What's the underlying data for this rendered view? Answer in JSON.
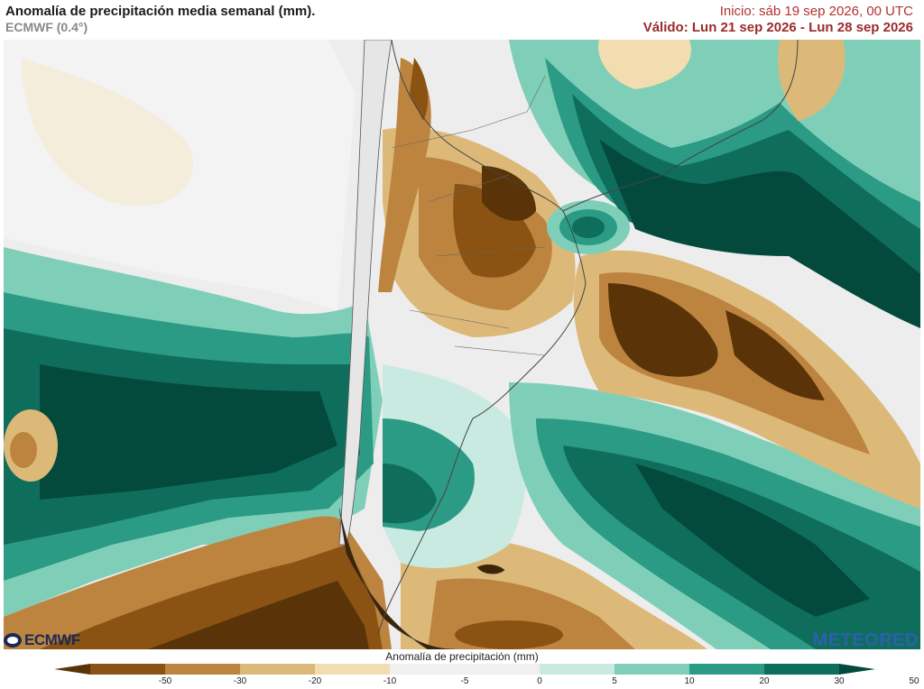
{
  "header": {
    "title": "Anomalía de precipitación media semanal (mm).",
    "model": "ECMWF (0.4°)",
    "init": "Inicio:  sáb 19 sep 2026, 00 UTC",
    "valid": "Válido: Lun 21 sep 2026 - Lun 28 sep 2026"
  },
  "legend": {
    "title": "Anomalía de precipitación (mm)",
    "ticks": [
      "-50",
      "-30",
      "-20",
      "-10",
      "-5",
      "0",
      "5",
      "10",
      "20",
      "30",
      "50"
    ],
    "colors": [
      "#5a3408",
      "#8a5313",
      "#bd8440",
      "#dcb978",
      "#f2ddb0",
      "#f0f0f0",
      "#f0f0f0",
      "#c9eae0",
      "#7fcfb8",
      "#2c9b85",
      "#0f6e5b",
      "#034a3d"
    ]
  },
  "logos": {
    "left": "ECMWF",
    "right": "METEORED"
  }
}
